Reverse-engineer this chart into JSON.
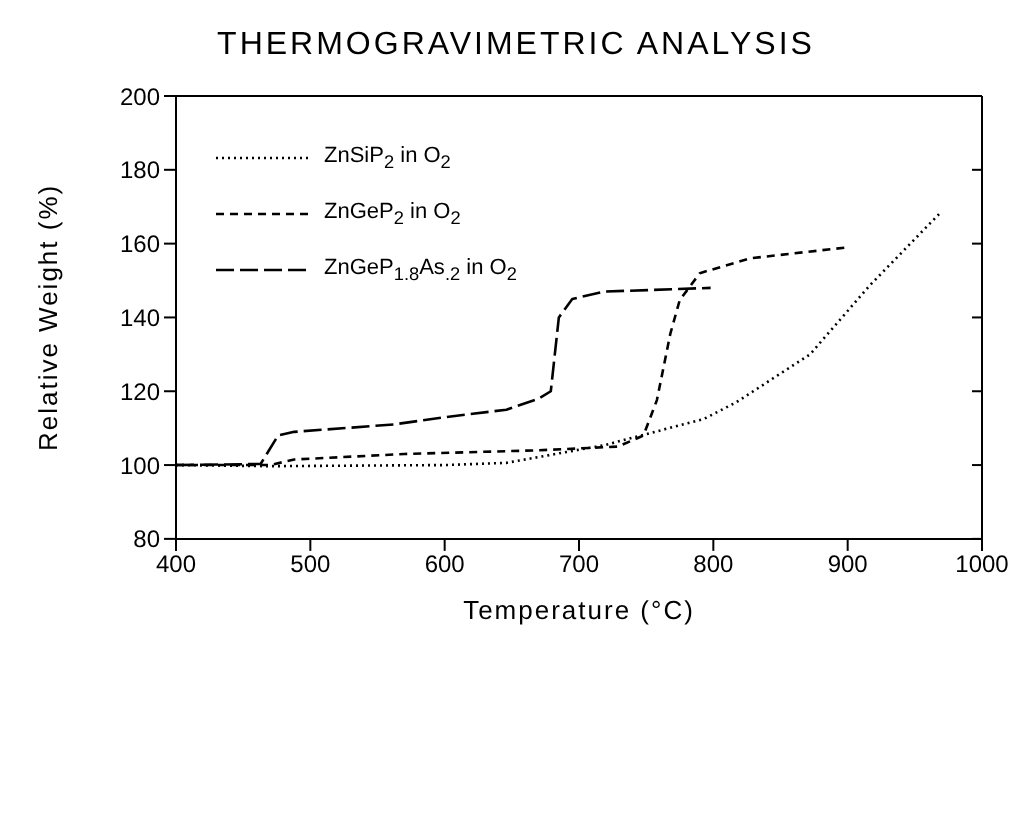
{
  "chart_data": {
    "type": "line",
    "title": "THERMOGRAVIMETRIC ANALYSIS",
    "xlabel": "Temperature (°C)",
    "ylabel": "Relative Weight (%)",
    "xlim": [
      400,
      1000
    ],
    "xticks": [
      400,
      500,
      600,
      700,
      800,
      900,
      1000
    ],
    "ylim": [
      80,
      200
    ],
    "yticks": [
      80,
      100,
      120,
      140,
      160,
      180,
      200
    ],
    "legend": "top left",
    "marker": "none",
    "series": [
      {
        "name": "ZnSiP$_{2}$ in O$_{2}$",
        "color": "#000000",
        "line_style": "dotted",
        "x": [
          400,
          470,
          600,
          646,
          719,
          793,
          817,
          872,
          916,
          968
        ],
        "values": [
          100,
          99.7,
          100,
          100.6,
          105.4,
          112.5,
          117,
          130,
          148.5,
          168
        ]
      },
      {
        "name": "ZnGeP$_{2}$ in O$_{2}$",
        "color": "#000000",
        "line_style": "dashed",
        "x": [
          400,
          470,
          488,
          570,
          670,
          729,
          748,
          758,
          768,
          775,
          790,
          827,
          900
        ],
        "values": [
          100,
          100,
          101.5,
          103,
          104,
          105,
          108,
          117.6,
          135.6,
          144.7,
          152,
          156,
          159
        ]
      },
      {
        "name": "ZnGeP$_{1.8}$As$_{.2}$ in O$_{2}$",
        "color": "#000000",
        "line_style": "dashed",
        "x": [
          400,
          463,
          476,
          488,
          562,
          601,
          646,
          670,
          679,
          685,
          695,
          719,
          798
        ],
        "values": [
          100,
          100.3,
          108,
          109,
          111,
          113,
          115,
          118,
          120,
          140,
          145,
          147,
          148
        ]
      }
    ]
  }
}
